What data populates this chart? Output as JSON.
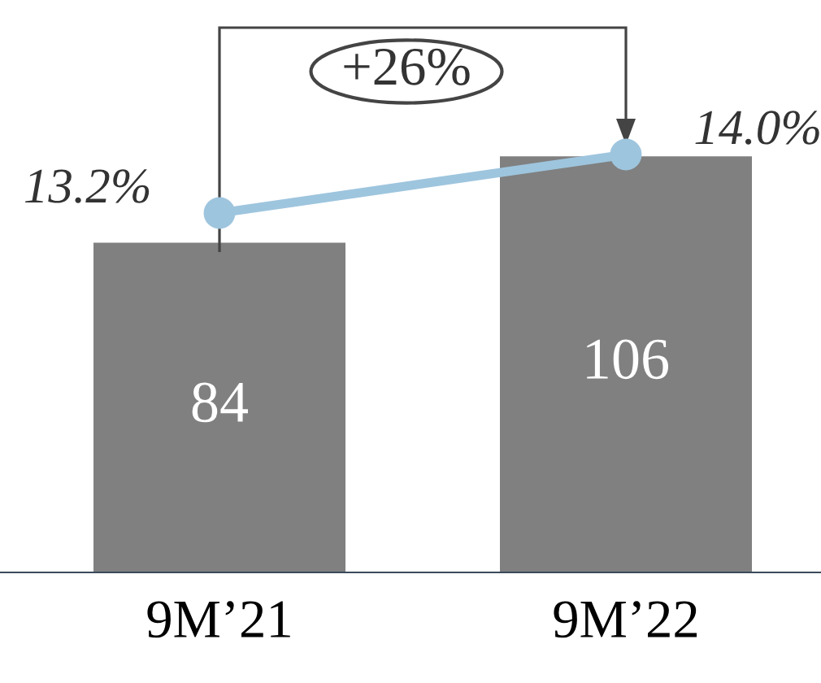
{
  "chart_data": {
    "type": "bar",
    "categories": [
      "9M’21",
      "9M’22"
    ],
    "series": [
      {
        "color": "#808080",
        "values": [
          84,
          106
        ],
        "data_labels": true
      },
      {
        "type": "line",
        "axis": "y2",
        "color": "#9ec5de",
        "values": [
          13.2,
          14.0
        ],
        "value_labels": [
          "13.2%",
          "14.0%"
        ],
        "marker": "circle"
      }
    ],
    "tick_labels": "x",
    "grid": false,
    "annotations": [
      "+26%"
    ]
  }
}
